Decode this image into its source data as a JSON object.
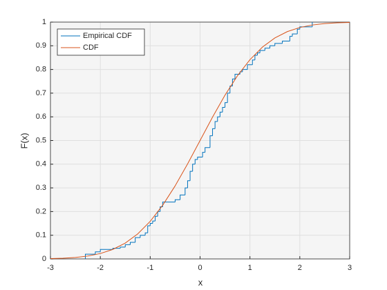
{
  "chart_data": {
    "type": "line",
    "xlabel": "x",
    "ylabel": "F(x)",
    "xlim": [
      -3,
      3
    ],
    "xticks": [
      -3,
      -2,
      -1,
      0,
      1,
      2,
      3
    ],
    "ylim": [
      0,
      1
    ],
    "yticks": [
      0,
      0.1,
      0.2,
      0.3,
      0.4,
      0.5,
      0.6,
      0.7,
      0.8,
      0.9,
      1
    ],
    "grid": true,
    "legend": "upper-left",
    "series": [
      {
        "name": "Empirical CDF",
        "color": "#0072bd",
        "style": "stairs",
        "x": [
          -2.3,
          -2.1,
          -2.0,
          -1.75,
          -1.6,
          -1.5,
          -1.4,
          -1.3,
          -1.2,
          -1.1,
          -1.05,
          -1.0,
          -0.95,
          -0.9,
          -0.85,
          -0.8,
          -0.75,
          -0.5,
          -0.4,
          -0.3,
          -0.25,
          -0.2,
          -0.15,
          -0.1,
          -0.05,
          0.05,
          0.1,
          0.2,
          0.25,
          0.3,
          0.35,
          0.4,
          0.45,
          0.5,
          0.55,
          0.6,
          0.65,
          0.7,
          0.8,
          0.85,
          0.95,
          1.05,
          1.1,
          1.15,
          1.2,
          1.3,
          1.4,
          1.5,
          1.65,
          1.8,
          1.85,
          1.95,
          2.0,
          2.25
        ],
        "values": [
          0.02,
          0.03,
          0.04,
          0.045,
          0.05,
          0.06,
          0.07,
          0.09,
          0.1,
          0.11,
          0.14,
          0.15,
          0.16,
          0.18,
          0.2,
          0.22,
          0.24,
          0.25,
          0.27,
          0.3,
          0.33,
          0.37,
          0.4,
          0.42,
          0.43,
          0.45,
          0.47,
          0.52,
          0.55,
          0.58,
          0.6,
          0.62,
          0.64,
          0.66,
          0.7,
          0.73,
          0.76,
          0.78,
          0.79,
          0.8,
          0.82,
          0.84,
          0.86,
          0.87,
          0.88,
          0.89,
          0.9,
          0.91,
          0.92,
          0.94,
          0.95,
          0.97,
          0.98,
          1
        ]
      },
      {
        "name": "CDF",
        "color": "#d95319",
        "style": "line",
        "x": [
          -3,
          -2.75,
          -2.5,
          -2.25,
          -2,
          -1.75,
          -1.5,
          -1.25,
          -1,
          -0.75,
          -0.5,
          -0.25,
          0,
          0.25,
          0.5,
          0.75,
          1,
          1.25,
          1.5,
          1.75,
          2,
          2.25,
          2.5,
          2.75,
          3
        ],
        "values": [
          0.0013,
          0.003,
          0.0062,
          0.0122,
          0.0228,
          0.0401,
          0.0668,
          0.1056,
          0.1587,
          0.2266,
          0.3085,
          0.4013,
          0.5,
          0.5987,
          0.6915,
          0.7734,
          0.8413,
          0.8944,
          0.9332,
          0.9599,
          0.9772,
          0.9878,
          0.9938,
          0.997,
          0.9987
        ]
      }
    ]
  }
}
